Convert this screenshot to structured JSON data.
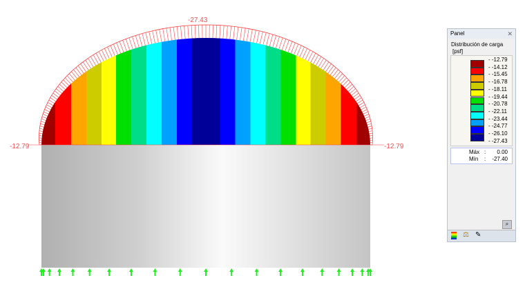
{
  "labels": {
    "top": "-27.43",
    "left": "-12.79",
    "right": "-12.79"
  },
  "panel": {
    "title": "Panel",
    "heading": "Distribución de carga",
    "unit": "[psf]",
    "legend": [
      {
        "value": "-12.79",
        "color": "#a00000"
      },
      {
        "value": "-14.12",
        "color": "#ff0000"
      },
      {
        "value": "-15.45",
        "color": "#ffa500"
      },
      {
        "value": "-16.78",
        "color": "#cccc00"
      },
      {
        "value": "-18.11",
        "color": "#ffff00"
      },
      {
        "value": "-19.44",
        "color": "#00e000"
      },
      {
        "value": "-20.78",
        "color": "#00dd88"
      },
      {
        "value": "-22.11",
        "color": "#00ffff"
      },
      {
        "value": "-23.44",
        "color": "#00a0ff"
      },
      {
        "value": "-24.77",
        "color": "#0000ff"
      },
      {
        "value": "-26.10",
        "color": "#000099"
      },
      {
        "value": "-27.43",
        "color": null
      }
    ],
    "max_label": "Máx",
    ":": ":",
    "max": "0.00",
    "min_label": "Mín",
    "min": "-27.40"
  },
  "colors": {
    "load_hatch": "#ff4040",
    "support": "#22ee22"
  }
}
